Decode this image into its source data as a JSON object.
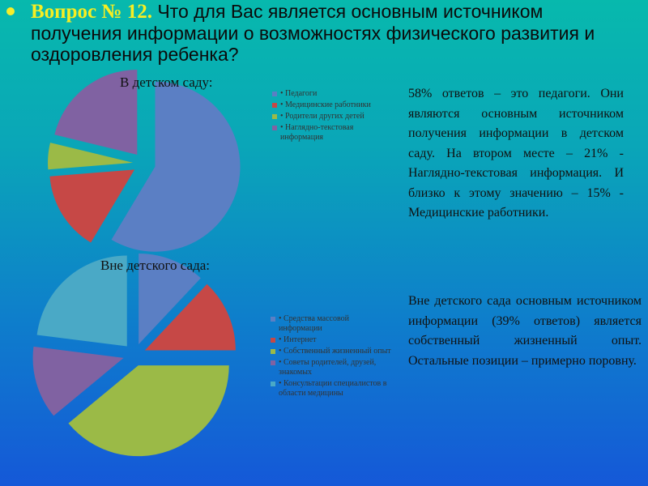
{
  "header": {
    "question_label": "Вопрос № 12.",
    "question_text": " Что для Вас является основным источником получения информации о возможностях физического развития и оздоровления ребенка?"
  },
  "paragraphs": {
    "kindergarten": "58% ответов – это педагоги. Они являются основным источником получения информации в детском саду. На втором месте – 21% - Наглядно-текстовая информация. И близко к этому значению – 15% - Медицинские работники.",
    "outside": "Вне детского сада основным источником информации (39% ответов) является собственный жизненный опыт. Остальные позиции – примерно поровну."
  },
  "chart_data": [
    {
      "type": "pie",
      "title": "В детском саду:",
      "series": [
        {
          "name": "Педагоги",
          "value": 58,
          "color": "#5b7fc4"
        },
        {
          "name": "Медицинские работники",
          "value": 15,
          "color": "#c64846"
        },
        {
          "name": "Родители других детей",
          "value": 5,
          "color": "#9bba47"
        },
        {
          "name": "Наглядно-текстовая информация",
          "value": 21,
          "color": "#8062a2"
        }
      ],
      "legend_position": "right"
    },
    {
      "type": "pie",
      "title": "Вне детского сада:",
      "series": [
        {
          "name": "Средства массовой информации",
          "value": 12,
          "color": "#5b7fc4"
        },
        {
          "name": "Интернет",
          "value": 13,
          "color": "#c64846"
        },
        {
          "name": "Собственный жизненный опыт",
          "value": 39,
          "color": "#9bba47"
        },
        {
          "name": "Советы родителей, друзей, знакомых",
          "value": 13,
          "color": "#8062a2"
        },
        {
          "name": "Консультации специалистов в области медицины",
          "value": 23,
          "color": "#4aa9c6"
        }
      ],
      "legend_position": "right"
    }
  ]
}
